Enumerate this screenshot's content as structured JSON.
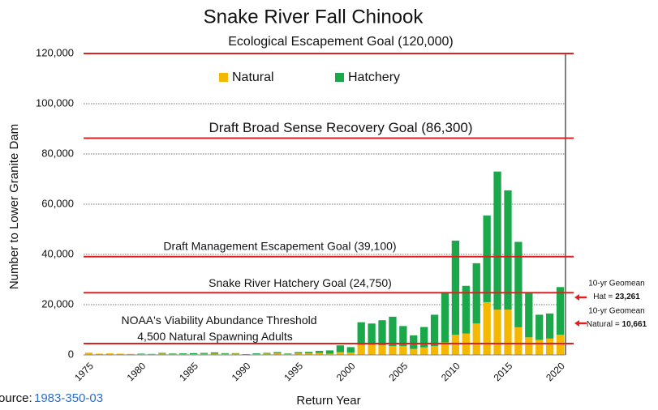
{
  "chart_data": {
    "type": "stacked_bar",
    "title": "Snake River Fall Chinook",
    "ylabel": "Number to Lower Granite Dam",
    "xlabel": "Return Year",
    "categories": [
      1975,
      null,
      null,
      null,
      null,
      1980,
      null,
      null,
      null,
      null,
      1985,
      null,
      null,
      null,
      null,
      1990,
      null,
      null,
      null,
      null,
      1995,
      null,
      null,
      null,
      null,
      2000,
      null,
      null,
      null,
      null,
      2005,
      null,
      null,
      null,
      null,
      2010,
      null,
      null,
      null,
      null,
      2015,
      null,
      null,
      null,
      null,
      2020
    ],
    "series": [
      {
        "name": "Natural",
        "color": "#f5b800",
        "values": [
          900,
          500,
          600,
          500,
          400,
          300,
          300,
          500,
          400,
          300,
          300,
          400,
          500,
          400,
          500,
          100,
          300,
          500,
          600,
          400,
          600,
          600,
          800,
          500,
          1100,
          900,
          4000,
          4000,
          3800,
          3500,
          3500,
          2400,
          3000,
          3500,
          5000,
          8000,
          8500,
          12500,
          21000,
          18000,
          18000,
          11000,
          7000,
          6000,
          6500,
          8000
        ]
      },
      {
        "name": "Hatchery",
        "color": "#1aa84a",
        "values": [
          0,
          0,
          0,
          0,
          0,
          200,
          100,
          300,
          200,
          300,
          400,
          400,
          500,
          300,
          200,
          200,
          300,
          300,
          500,
          200,
          500,
          600,
          800,
          1300,
          2700,
          2200,
          9000,
          8500,
          10000,
          11700,
          8000,
          5400,
          8100,
          12500,
          20000,
          37500,
          19000,
          24000,
          34500,
          55000,
          47500,
          34000,
          17500,
          10000,
          10000,
          19000
        ]
      }
    ],
    "ylim": [
      0,
      120000
    ],
    "yticks": [
      0,
      {
        "value": 20000,
        "label": "20,000"
      },
      {
        "value": 40000,
        "label": "40,000"
      },
      {
        "value": 60000,
        "label": "60,000"
      },
      {
        "value": 80000,
        "label": "80,000"
      },
      {
        "value": 100000,
        "label": "100,000"
      },
      {
        "value": 120000,
        "label": "120,000"
      }
    ],
    "grid": true,
    "goal_lines": [
      {
        "value": 120000,
        "label": [
          "Ecological Escapement Goal (120,000)"
        ]
      },
      {
        "value": 86300,
        "label": [
          "Draft Broad Sense Recovery Goal (86,300)"
        ]
      },
      {
        "value": 39100,
        "label": [
          "Draft Management Escapement Goal (39,100)"
        ]
      },
      {
        "value": 24750,
        "label": [
          "Snake River Hatchery Goal (24,750)"
        ]
      },
      {
        "value": 4500,
        "label": [
          "NOAA's Viability Abundance Threshold",
          "4,500 Natural Spawning Adults"
        ]
      }
    ],
    "annotations": [
      {
        "title": "10-yr Geomean",
        "label": "Hat = ",
        "value": "23,261"
      },
      {
        "title": "10-yr Geomean",
        "label": "Natural = ",
        "value": "10,661"
      }
    ],
    "source": {
      "label": "Source:",
      "link": "1983-350-03"
    }
  }
}
